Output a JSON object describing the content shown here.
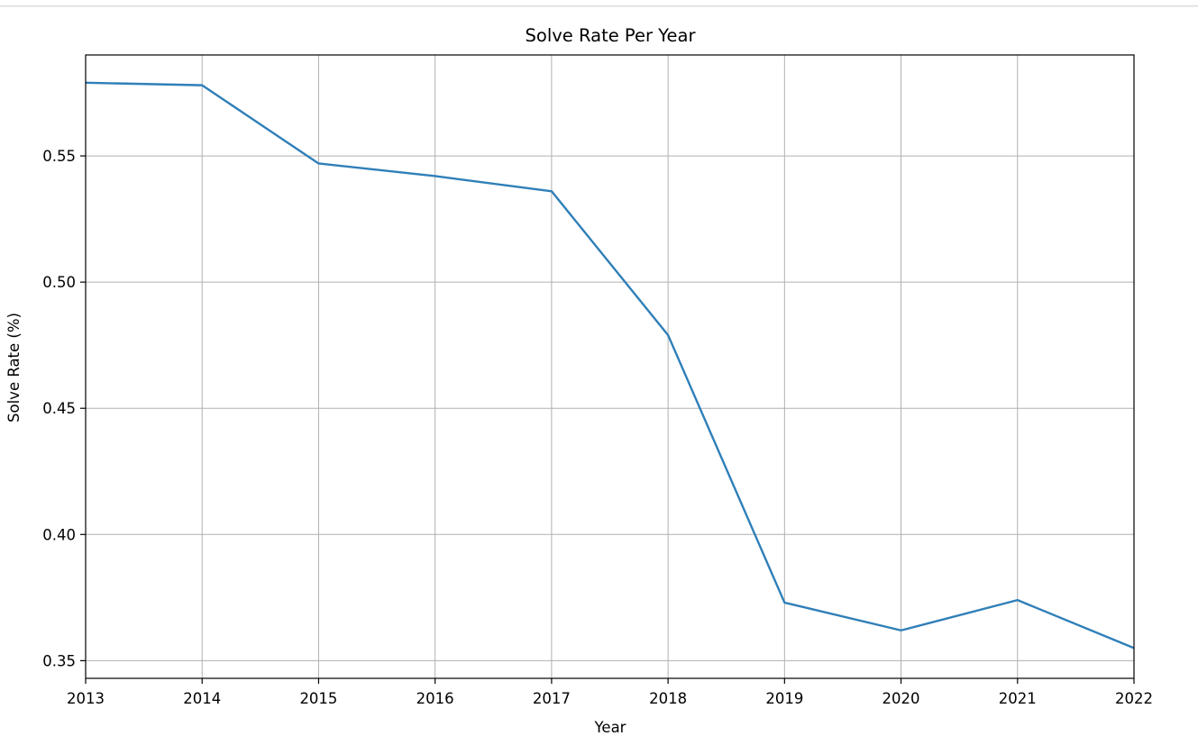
{
  "chart_data": {
    "type": "line",
    "title": "Solve Rate Per Year",
    "xlabel": "Year",
    "ylabel": "Solve Rate (%)",
    "x": [
      2013,
      2014,
      2015,
      2016,
      2017,
      2018,
      2019,
      2020,
      2021,
      2022
    ],
    "x_ticks": [
      "2013",
      "2014",
      "2015",
      "2016",
      "2017",
      "2018",
      "2019",
      "2020",
      "2021",
      "2022"
    ],
    "y_ticks": [
      "0.35",
      "0.40",
      "0.45",
      "0.50",
      "0.55"
    ],
    "y_tick_values": [
      0.35,
      0.4,
      0.45,
      0.5,
      0.55
    ],
    "series": [
      {
        "values": [
          0.579,
          0.578,
          0.547,
          0.542,
          0.536,
          0.479,
          0.373,
          0.362,
          0.374,
          0.355
        ]
      }
    ],
    "xlim": [
      2013,
      2022
    ],
    "ylim": [
      0.343,
      0.59
    ],
    "grid": true,
    "line_color": "#2f7fb8",
    "grid_color": "#b0b0b0"
  }
}
